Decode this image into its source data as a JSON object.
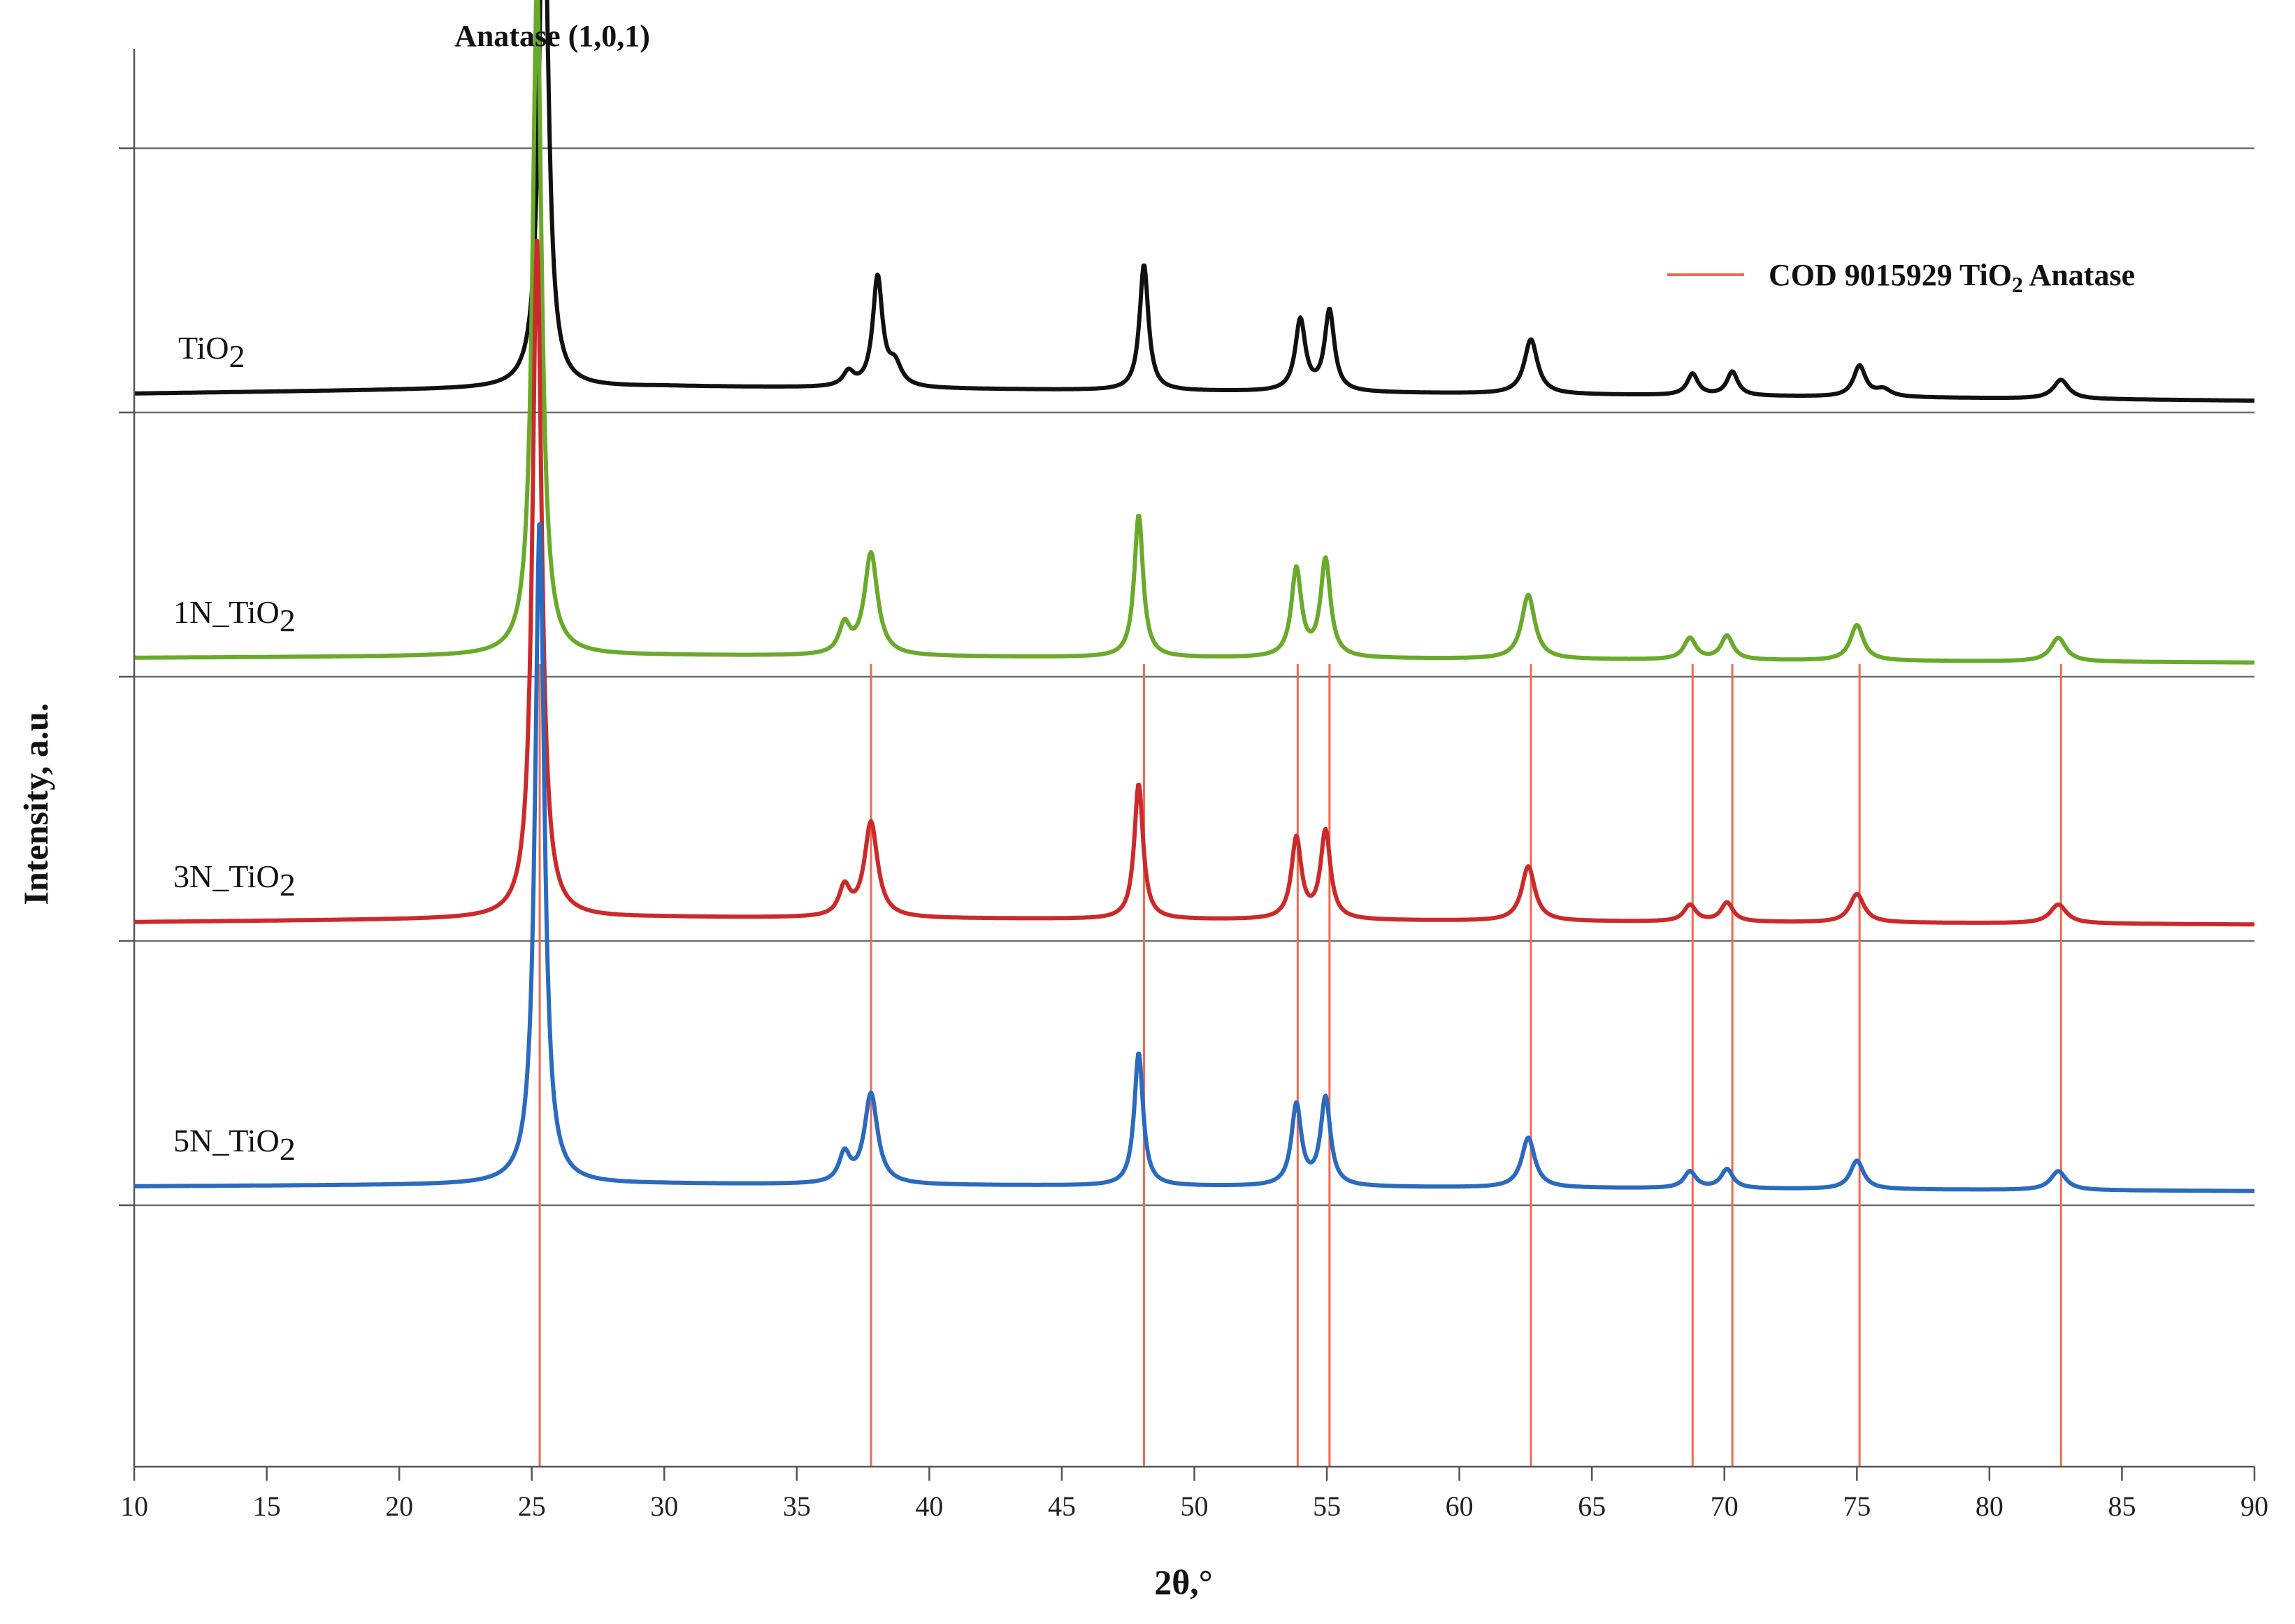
{
  "chart_data": {
    "type": "line",
    "title": "",
    "xlabel": "2θ,°",
    "ylabel": "Intensity, a.u.",
    "xlim": [
      10,
      90
    ],
    "x_ticks": [
      10,
      15,
      20,
      25,
      30,
      35,
      40,
      45,
      50,
      55,
      60,
      65,
      70,
      75,
      80,
      85,
      90
    ],
    "annotation": "Anatase (1,0,1)",
    "legend": {
      "position": "top-right",
      "entries": [
        {
          "name_main": "COD 9015929 TiO",
          "name_sub": "2",
          "name_tail": " Anatase",
          "color": "#f06a52"
        }
      ]
    },
    "reference_lines": [
      25.3,
      37.8,
      48.1,
      53.9,
      55.1,
      62.7,
      68.8,
      70.3,
      75.1,
      82.7
    ],
    "series": [
      {
        "name_main": "TiO",
        "name_sub": "2",
        "color": "#111111",
        "baseline": [
          [
            10,
            0.05
          ],
          [
            30,
            0.08
          ],
          [
            90,
            0.02
          ]
        ],
        "peaks": [
          [
            25.45,
            2.25,
            0.42
          ],
          [
            36.95,
            0.06,
            0.5
          ],
          [
            38.05,
            0.46,
            0.44
          ],
          [
            38.7,
            0.09,
            0.6
          ],
          [
            48.1,
            0.53,
            0.4
          ],
          [
            54.0,
            0.3,
            0.46
          ],
          [
            55.1,
            0.34,
            0.44
          ],
          [
            62.7,
            0.23,
            0.6
          ],
          [
            68.8,
            0.09,
            0.5
          ],
          [
            70.3,
            0.1,
            0.5
          ],
          [
            75.1,
            0.13,
            0.55
          ],
          [
            76.0,
            0.03,
            0.7
          ],
          [
            82.7,
            0.08,
            0.7
          ]
        ]
      },
      {
        "name_main": "1N_TiO",
        "name_sub": "2",
        "color": "#6aaa2a",
        "baseline": [
          [
            10,
            0.05
          ],
          [
            30,
            0.06
          ],
          [
            90,
            0.03
          ]
        ],
        "peaks": [
          [
            25.2,
            2.83,
            0.42
          ],
          [
            36.8,
            0.12,
            0.5
          ],
          [
            37.8,
            0.43,
            0.6
          ],
          [
            47.9,
            0.6,
            0.4
          ],
          [
            53.85,
            0.37,
            0.45
          ],
          [
            54.95,
            0.41,
            0.45
          ],
          [
            62.6,
            0.27,
            0.6
          ],
          [
            68.7,
            0.09,
            0.55
          ],
          [
            70.1,
            0.1,
            0.55
          ],
          [
            75.0,
            0.15,
            0.6
          ],
          [
            82.6,
            0.1,
            0.7
          ]
        ]
      },
      {
        "name_main": "3N_TiO",
        "name_sub": "2",
        "color": "#cc2a2a",
        "baseline": [
          [
            10,
            0.05
          ],
          [
            30,
            0.07
          ],
          [
            90,
            0.04
          ]
        ],
        "peaks": [
          [
            25.2,
            2.85,
            0.42
          ],
          [
            36.8,
            0.12,
            0.5
          ],
          [
            37.8,
            0.4,
            0.6
          ],
          [
            47.9,
            0.57,
            0.4
          ],
          [
            53.85,
            0.34,
            0.45
          ],
          [
            54.95,
            0.37,
            0.45
          ],
          [
            62.6,
            0.23,
            0.6
          ],
          [
            68.7,
            0.07,
            0.55
          ],
          [
            70.1,
            0.08,
            0.55
          ],
          [
            75.0,
            0.12,
            0.65
          ],
          [
            82.6,
            0.08,
            0.75
          ]
        ]
      },
      {
        "name_main": "5N_TiO",
        "name_sub": "2",
        "color": "#2a6abf",
        "baseline": [
          [
            10,
            0.05
          ],
          [
            30,
            0.06
          ],
          [
            90,
            0.03
          ]
        ],
        "peaks": [
          [
            25.3,
            2.8,
            0.42
          ],
          [
            36.8,
            0.12,
            0.5
          ],
          [
            37.8,
            0.38,
            0.6
          ],
          [
            47.9,
            0.56,
            0.4
          ],
          [
            53.85,
            0.34,
            0.45
          ],
          [
            54.95,
            0.37,
            0.45
          ],
          [
            62.6,
            0.21,
            0.6
          ],
          [
            68.7,
            0.07,
            0.55
          ],
          [
            70.1,
            0.08,
            0.55
          ],
          [
            75.0,
            0.12,
            0.6
          ],
          [
            82.6,
            0.08,
            0.7
          ]
        ]
      }
    ]
  }
}
